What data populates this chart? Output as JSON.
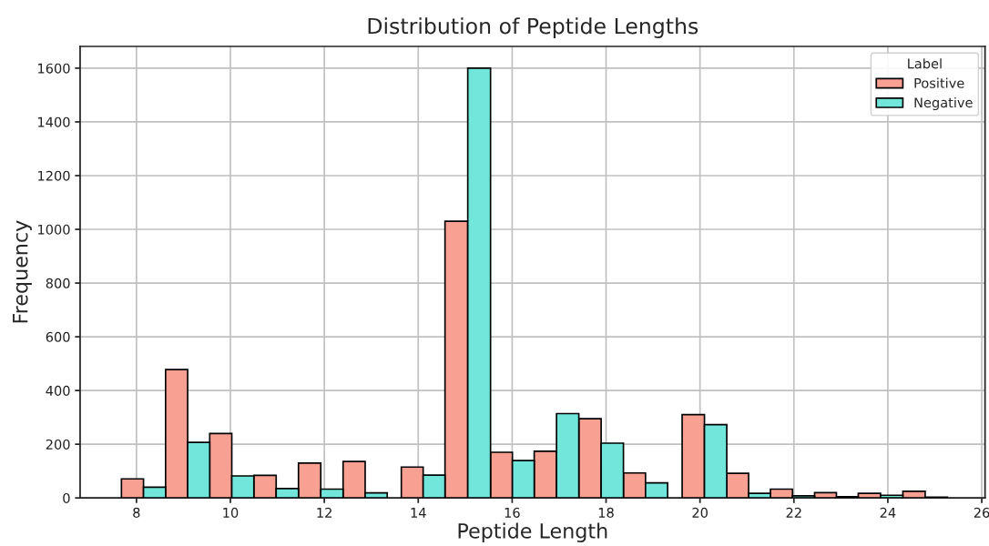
{
  "chart_data": {
    "type": "histogram",
    "title": "Distribution of Peptide Lengths",
    "xlabel": "Peptide Length",
    "ylabel": "Frequency",
    "legend_title": "Label",
    "bins": [
      7.68,
      8.62,
      9.56,
      10.5,
      11.45,
      12.4,
      13.34,
      13.64,
      14.57,
      15.54,
      16.47,
      17.42,
      18.37,
      19.31,
      19.62,
      20.57,
      21.5,
      22.44,
      23.37,
      24.32,
      25.27
    ],
    "series": [
      {
        "name": "Positive",
        "color": "#f8a193",
        "values": [
          71,
          478,
          240,
          84,
          130,
          136,
          0,
          115,
          1030,
          170,
          174,
          295,
          93,
          0,
          310,
          92,
          33,
          20,
          17,
          25
        ]
      },
      {
        "name": "Negative",
        "color": "#72e6da",
        "values": [
          40,
          207,
          82,
          35,
          33,
          19,
          0,
          85,
          1600,
          139,
          314,
          204,
          56,
          0,
          273,
          17,
          8,
          5,
          10,
          3
        ]
      }
    ],
    "xlim": [
      6.8,
      26.07
    ],
    "ylim": [
      0,
      1681
    ],
    "xticks": [
      8,
      10,
      12,
      14,
      16,
      18,
      20,
      22,
      24,
      26
    ],
    "yticks": [
      0,
      200,
      400,
      600,
      800,
      1000,
      1200,
      1400,
      1600
    ],
    "grid": true,
    "legend": "top right"
  }
}
